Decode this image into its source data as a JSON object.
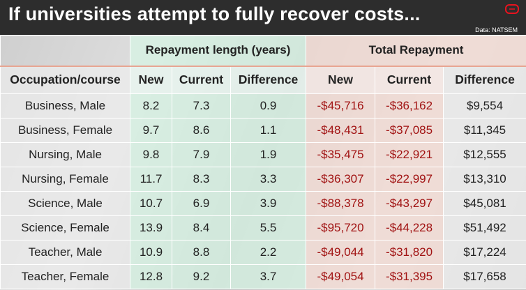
{
  "header": {
    "title": "If universities attempt to fully recover costs...",
    "source": "Data: NATSEM",
    "logo_color": "#e8131f"
  },
  "table": {
    "group_headers": {
      "repayment_length": "Repayment length (years)",
      "total_repayment": "Total Repayment"
    },
    "columns": [
      "Occupation/course",
      "New",
      "Current",
      "Difference",
      "New",
      "Current",
      "Difference"
    ],
    "rows": [
      [
        "Business, Male",
        "8.2",
        "7.3",
        "0.9",
        "-$45,716",
        "-$36,162",
        "$9,554"
      ],
      [
        "Business, Female",
        "9.7",
        "8.6",
        "1.1",
        "-$48,431",
        "-$37,085",
        "$11,345"
      ],
      [
        "Nursing, Male",
        "9.8",
        "7.9",
        "1.9",
        "-$35,475",
        "-$22,921",
        "$12,555"
      ],
      [
        "Nursing, Female",
        "11.7",
        "8.3",
        "3.3",
        "-$36,307",
        "-$22,997",
        "$13,310"
      ],
      [
        "Science, Male",
        "10.7",
        "6.9",
        "3.9",
        "-$88,378",
        "-$43,297",
        "$45,081"
      ],
      [
        "Science, Female",
        "13.9",
        "8.4",
        "5.5",
        "-$95,720",
        "-$44,228",
        "$51,492"
      ],
      [
        "Teacher, Male",
        "10.9",
        "8.8",
        "2.2",
        "-$49,044",
        "-$31,820",
        "$17,224"
      ],
      [
        "Teacher, Female",
        "12.8",
        "9.2",
        "3.7",
        "-$49,054",
        "-$31,395",
        "$17,658"
      ]
    ]
  },
  "colors": {
    "negative_value": "#a11313",
    "repayment_length_group": "#d6f0e2",
    "total_repayment_group": "#f5ddd6"
  }
}
